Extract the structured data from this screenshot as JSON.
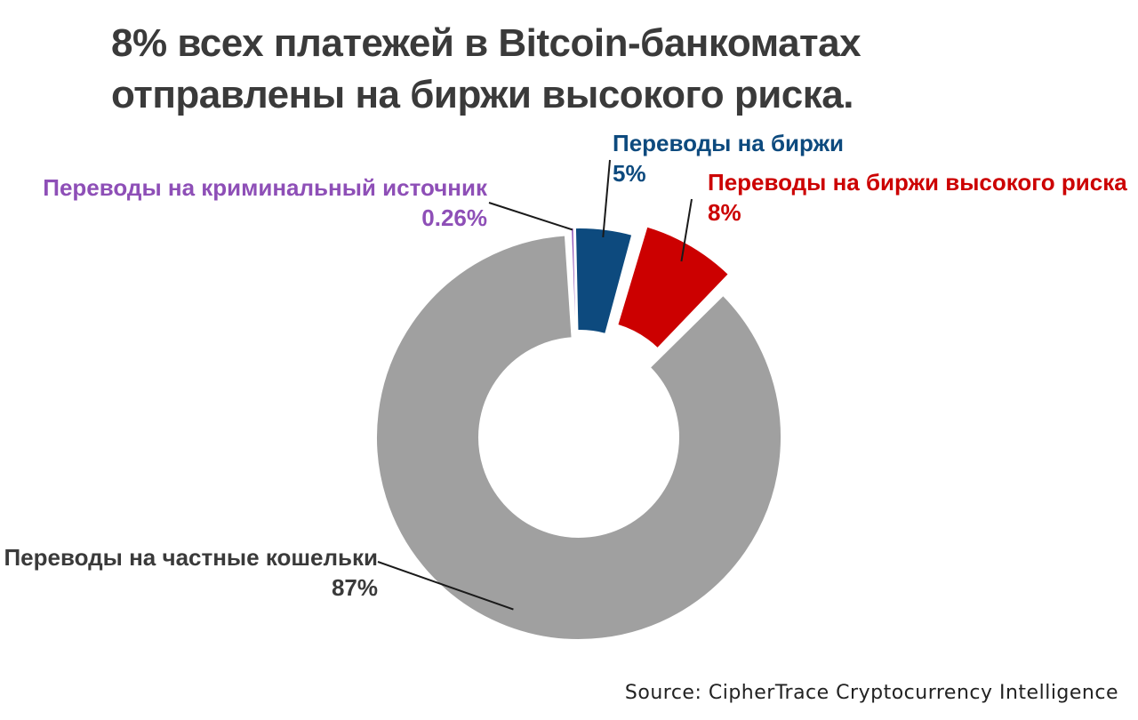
{
  "title": "8% всех платежей в Bitcoin-банкоматах отправлены на биржи высокого риска.",
  "source": "Source: CipherTrace Cryptocurrency Intelligence",
  "chart_data": {
    "type": "pie",
    "donut": true,
    "title": "8% всех платежей в Bitcoin-банкоматах отправлены на биржи высокого риска.",
    "slices": [
      {
        "label": "Переводы на криминальный источник",
        "value": 0.26,
        "display": "0.26%",
        "color": "#8e4fb7"
      },
      {
        "label": "Переводы на биржи",
        "value": 5,
        "display": "5%",
        "color": "#0d4a7e"
      },
      {
        "label": "Переводы на биржи высокого риска",
        "value": 8,
        "display": "8%",
        "color": "#cc0000"
      },
      {
        "label": "Переводы на частные кошельки",
        "value": 87,
        "display": "87%",
        "color": "#a0a0a0"
      }
    ],
    "label_text_colors": [
      "#8e4fb7",
      "#0d4a7e",
      "#cc0000",
      "#3a3a3a"
    ],
    "legend": "none",
    "source": "Source: CipherTrace Cryptocurrency Intelligence"
  }
}
